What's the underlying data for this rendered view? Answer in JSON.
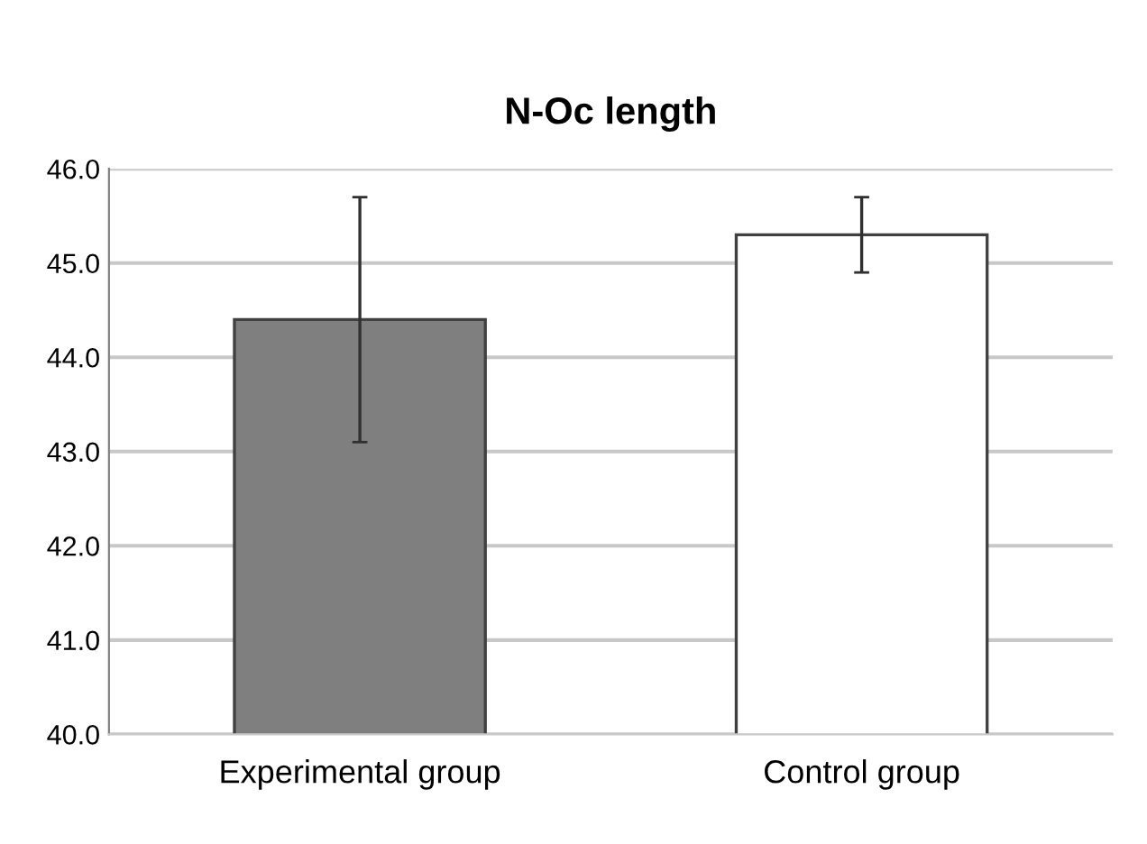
{
  "chart_data": {
    "type": "bar",
    "title": "N-Oc length",
    "categories": [
      "Experimental group",
      "Control group"
    ],
    "values": [
      44.4,
      45.3
    ],
    "colors": [
      "#7f7f7f",
      "#ffffff"
    ],
    "errors": [
      1.3,
      0.4
    ],
    "ylim": [
      40,
      46
    ],
    "yticks": [
      {
        "value": 40,
        "label": "40.0"
      },
      {
        "value": 41,
        "label": "41.0"
      },
      {
        "value": 42,
        "label": "42.0"
      },
      {
        "value": 43,
        "label": "43.0"
      },
      {
        "value": 44,
        "label": "44.0"
      },
      {
        "value": 45,
        "label": "45.0"
      },
      {
        "value": 46,
        "label": "46.0"
      }
    ],
    "grid": "y",
    "legend": false
  }
}
